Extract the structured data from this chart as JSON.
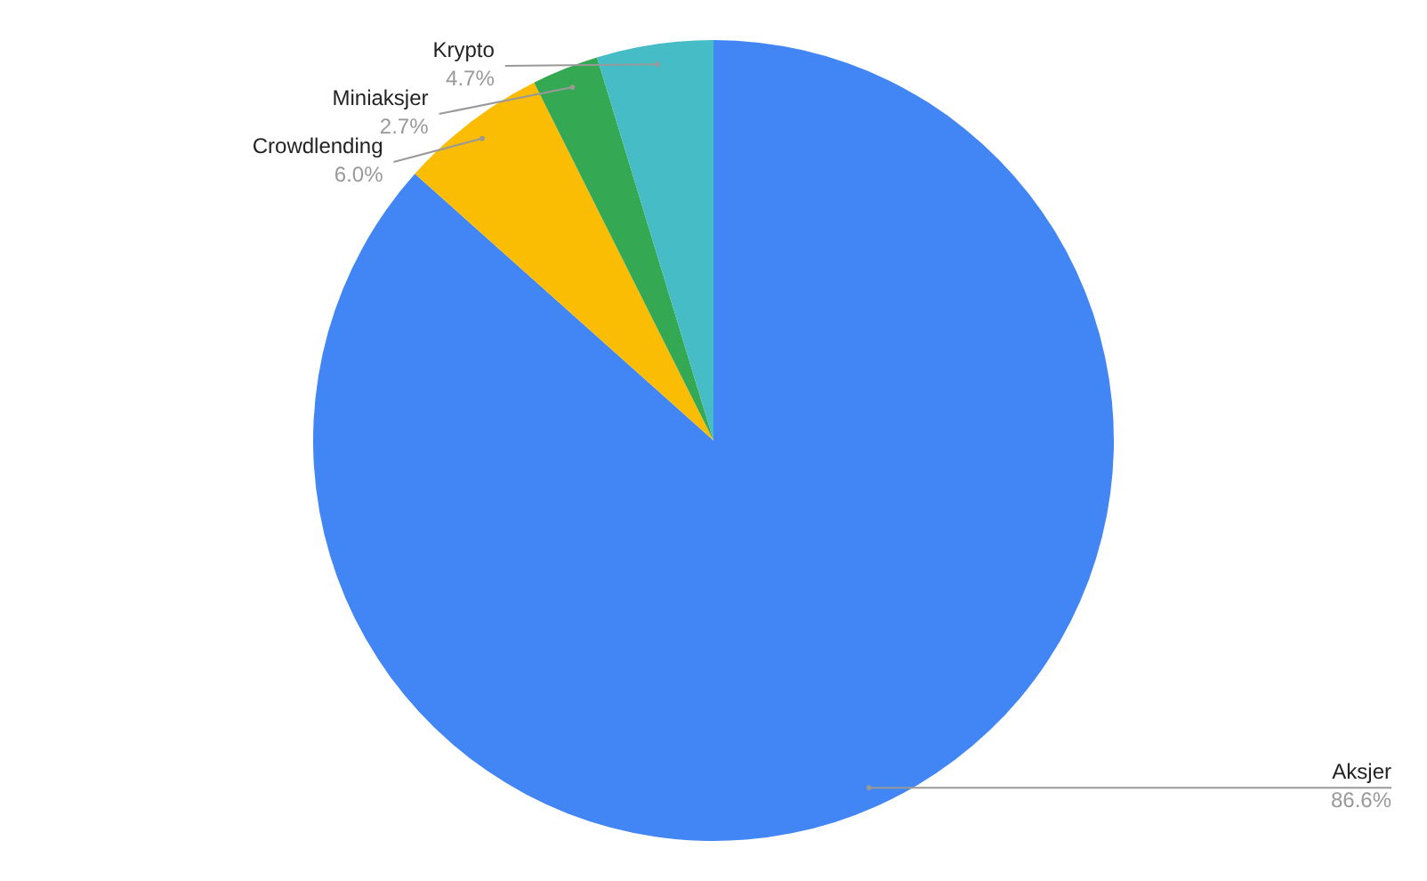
{
  "chart_data": {
    "type": "pie",
    "categories": [
      "Aksjer",
      "Crowdlending",
      "Miniaksjer",
      "Krypto"
    ],
    "values": [
      86.6,
      6.0,
      2.7,
      4.7
    ],
    "colors": [
      "#4285f4",
      "#fbbc04",
      "#34a853",
      "#46bdc6"
    ],
    "value_labels": [
      "86.6%",
      "6.0%",
      "2.7%",
      "4.7%"
    ]
  }
}
